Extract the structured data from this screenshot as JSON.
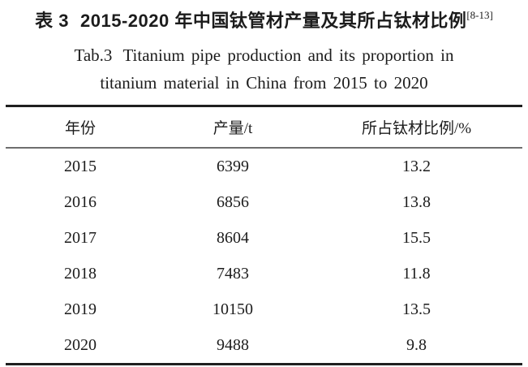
{
  "title": {
    "zh_label": "表 3",
    "zh_text": "2015-2020 年中国钛管材产量及其所占钛材比例",
    "zh_ref": "[8-13]",
    "en_label": "Tab.3",
    "en_line1": "Titanium pipe production and its proportion in",
    "en_line2": "titanium material in China from 2015 to 2020"
  },
  "table": {
    "headers": [
      "年份",
      "产量/t",
      "所占钛材比例/%"
    ],
    "rows": [
      [
        "2015",
        "6399",
        "13.2"
      ],
      [
        "2016",
        "6856",
        "13.8"
      ],
      [
        "2017",
        "8604",
        "15.5"
      ],
      [
        "2018",
        "7483",
        "11.8"
      ],
      [
        "2019",
        "10150",
        "13.5"
      ],
      [
        "2020",
        "9488",
        "9.8"
      ]
    ]
  },
  "colors": {
    "text": "#1c1c1c",
    "background": "#ffffff",
    "thick_rule": "#1f1f1f",
    "thin_rule": "#6e6e6e"
  }
}
